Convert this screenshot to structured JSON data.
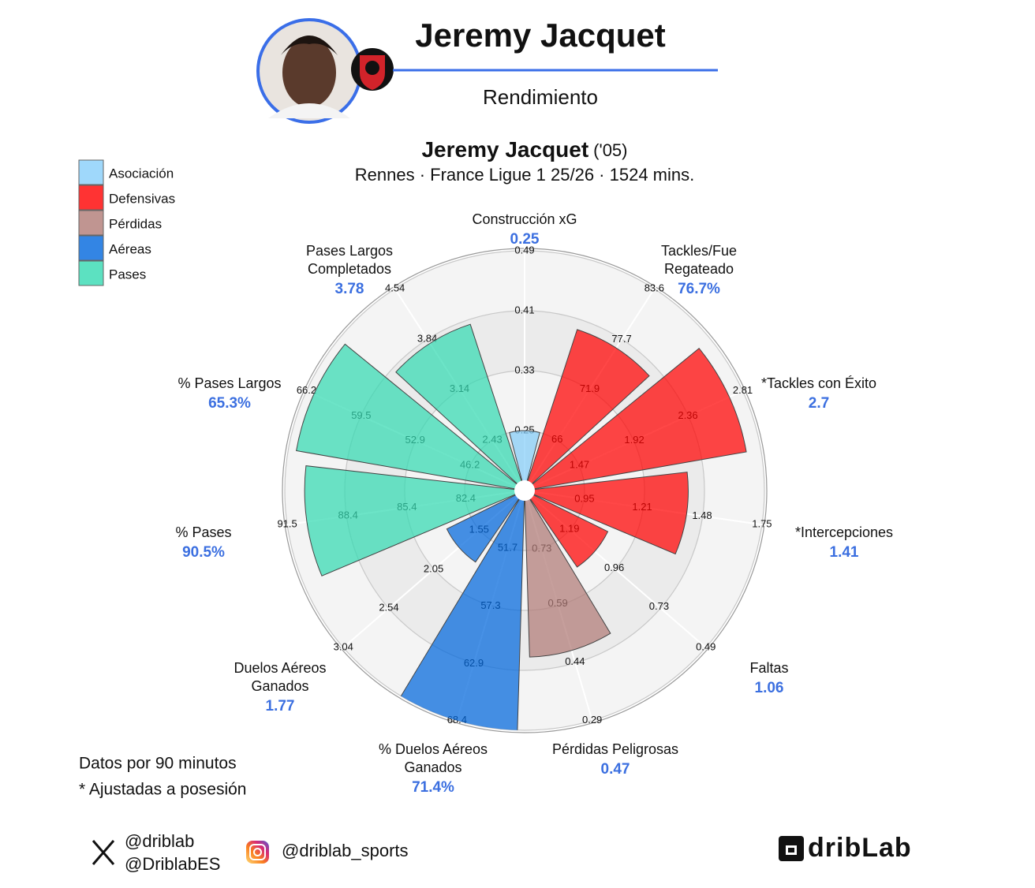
{
  "header": {
    "title": "Jeremy Jacquet",
    "subtitle": "Rendimiento"
  },
  "chart_data": {
    "type": "pizza",
    "title": "Jeremy Jacquet",
    "title_suffix": "('05)",
    "subtitle": "Rennes · France Ligue 1 25/26 · 1524 mins.",
    "groups": [
      {
        "name": "Asociación",
        "color": "#87cefa"
      },
      {
        "name": "Defensivas",
        "color": "#ff0000"
      },
      {
        "name": "Pérdidas",
        "color": "#b07a76"
      },
      {
        "name": "Aéreas",
        "color": "#0066dd"
      },
      {
        "name": "Pases",
        "color": "#33d9b2"
      }
    ],
    "params": [
      {
        "label": [
          "Construcción xG"
        ],
        "value": 0.25,
        "group": 0,
        "rlim": [
          0.17,
          0.49
        ],
        "ticks": [
          0.25,
          0.33,
          0.41,
          0.49
        ]
      },
      {
        "label": [
          "Tackles/Fue",
          "Regateado"
        ],
        "value": 76.7,
        "value_label": "76.7%",
        "group": 1,
        "rlim": [
          60.1,
          83.6
        ],
        "ticks": [
          66,
          71.9,
          77.7,
          83.6
        ]
      },
      {
        "label": [
          "*Tackles con Éxito"
        ],
        "value": 2.7,
        "group": 1,
        "rlim": [
          1.02,
          2.81
        ],
        "ticks": [
          1.47,
          1.92,
          2.36,
          2.81
        ]
      },
      {
        "label": [
          "*Intercepciones"
        ],
        "value": 1.41,
        "group": 1,
        "rlim": [
          0.68,
          1.75
        ],
        "ticks": [
          0.95,
          1.21,
          1.48,
          1.75
        ]
      },
      {
        "label": [
          "Faltas"
        ],
        "value": 1.06,
        "group": 1,
        "rlim": [
          1.42,
          0.49
        ],
        "ticks": [
          1.19,
          0.96,
          0.73,
          0.49
        ]
      },
      {
        "label": [
          "Pérdidas Peligrosas"
        ],
        "value": 0.47,
        "group": 2,
        "rlim": [
          0.88,
          0.29
        ],
        "ticks": [
          0.73,
          0.59,
          0.44,
          0.29
        ]
      },
      {
        "label": [
          "% Duelos Aéreos",
          "Ganados"
        ],
        "value": 71.4,
        "value_label": "71.4%",
        "group": 3,
        "rlim": [
          46.1,
          68.4
        ],
        "ticks": [
          51.7,
          57.3,
          62.9,
          68.4
        ]
      },
      {
        "label": [
          "Duelos Aéreos",
          "Ganados"
        ],
        "value": 1.77,
        "group": 3,
        "rlim": [
          1.05,
          3.04
        ],
        "ticks": [
          1.55,
          2.05,
          2.54,
          3.04
        ]
      },
      {
        "label": [
          "% Pases"
        ],
        "value": 90.5,
        "value_label": "90.5%",
        "group": 4,
        "rlim": [
          79.4,
          91.5
        ],
        "ticks": [
          82.4,
          85.4,
          88.4,
          91.5
        ]
      },
      {
        "label": [
          "% Pases Largos"
        ],
        "value": 65.3,
        "value_label": "65.3%",
        "group": 4,
        "rlim": [
          39.5,
          66.2
        ],
        "ticks": [
          46.2,
          52.9,
          59.5,
          66.2
        ]
      },
      {
        "label": [
          "Pases Largos",
          "Completados"
        ],
        "value": 3.78,
        "group": 4,
        "rlim": [
          1.73,
          4.54
        ],
        "ticks": [
          2.43,
          3.14,
          3.84,
          4.54
        ]
      }
    ]
  },
  "notes": [
    "Datos por 90 minutos",
    "* Ajustadas a posesión"
  ],
  "social": {
    "x_handles": [
      "@driblab",
      "@DriblabES"
    ],
    "instagram": "@driblab_sports"
  },
  "brand": "dribLab"
}
